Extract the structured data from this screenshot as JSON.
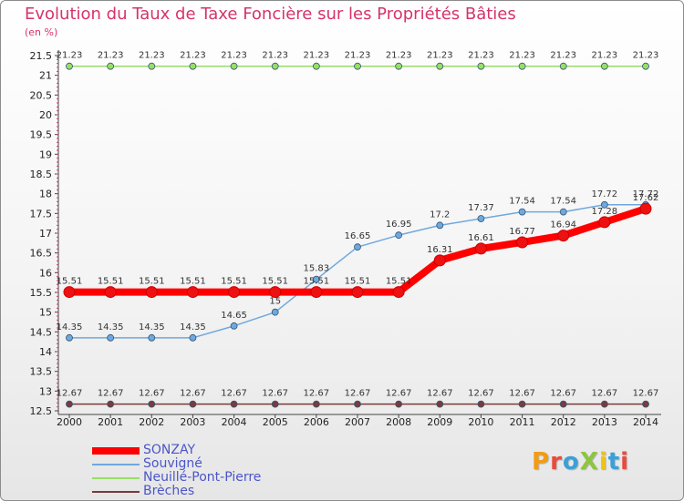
{
  "title": "Evolution du Taux de Taxe Foncière sur les Propriétés Bâties",
  "unit_label": "(en %)",
  "logo": {
    "text": "ProXiti",
    "colors": [
      "#f39c12",
      "#e74c3c",
      "#3aa0d8",
      "#8cc63f",
      "#f1c40f",
      "#3aa0d8",
      "#e74c3c"
    ]
  },
  "chart_data": {
    "type": "line",
    "title": "Evolution du Taux de Taxe Foncière sur les Propriétés Bâties",
    "ylabel": "(en %)",
    "xlabel": "",
    "ylim": [
      12.5,
      21.5
    ],
    "yticks": [
      12.5,
      13,
      13.5,
      14,
      14.5,
      15,
      15.5,
      16,
      16.5,
      17,
      17.5,
      18,
      18.5,
      19,
      19.5,
      20,
      20.5,
      21,
      21.5
    ],
    "grid": false,
    "legend": "bottom-left",
    "x": [
      "2000",
      "2001",
      "2002",
      "2003",
      "2004",
      "2005",
      "2006",
      "2007",
      "2008",
      "2009",
      "2010",
      "2011",
      "2012",
      "2013",
      "2014"
    ],
    "series": [
      {
        "name": "SONZAY",
        "color": "#ff0000",
        "values": [
          15.51,
          15.51,
          15.51,
          15.51,
          15.51,
          15.51,
          15.51,
          15.51,
          15.51,
          16.31,
          16.61,
          16.77,
          16.94,
          17.28,
          17.62
        ],
        "labels": [
          "15.51",
          "15.51",
          "15.51",
          "15.51",
          "15.51",
          "15.51",
          "15.51",
          "15.51",
          "15.51",
          "16.31",
          "16.61",
          "16.77",
          "16.94",
          "17.28",
          "17.62"
        ]
      },
      {
        "name": "Souvigné",
        "color": "#6fa8dc",
        "values": [
          14.35,
          14.35,
          14.35,
          14.35,
          14.65,
          15,
          15.83,
          16.65,
          16.95,
          17.2,
          17.37,
          17.54,
          17.54,
          17.72,
          17.72
        ],
        "labels": [
          "14.35",
          "14.35",
          "14.35",
          "14.35",
          "14.65",
          "15",
          "15.83",
          "16.65",
          "16.95",
          "17.2",
          "17.37",
          "17.54",
          "17.54",
          "17.72",
          "17.72"
        ]
      },
      {
        "name": "Neuillé-Pont-Pierre",
        "color": "#99dd66",
        "values": [
          21.23,
          21.23,
          21.23,
          21.23,
          21.23,
          21.23,
          21.23,
          21.23,
          21.23,
          21.23,
          21.23,
          21.23,
          21.23,
          21.23,
          21.23
        ],
        "labels": [
          "21.23",
          "21.23",
          "21.23",
          "21.23",
          "21.23",
          "21.23",
          "21.23",
          "21.23",
          "21.23",
          "21.23",
          "21.23",
          "21.23",
          "21.23",
          "21.23",
          "21.23"
        ]
      },
      {
        "name": "Brèches",
        "color": "#7a3b3b",
        "values": [
          12.67,
          12.67,
          12.67,
          12.67,
          12.67,
          12.67,
          12.67,
          12.67,
          12.67,
          12.67,
          12.67,
          12.67,
          12.67,
          12.67,
          12.67
        ],
        "labels": [
          "12.67",
          "12.67",
          "12.67",
          "12.67",
          "12.67",
          "12.67",
          "12.67",
          "12.67",
          "12.67",
          "12.67",
          "12.67",
          "12.67",
          "12.67",
          "12.67",
          "12.67"
        ]
      }
    ]
  }
}
